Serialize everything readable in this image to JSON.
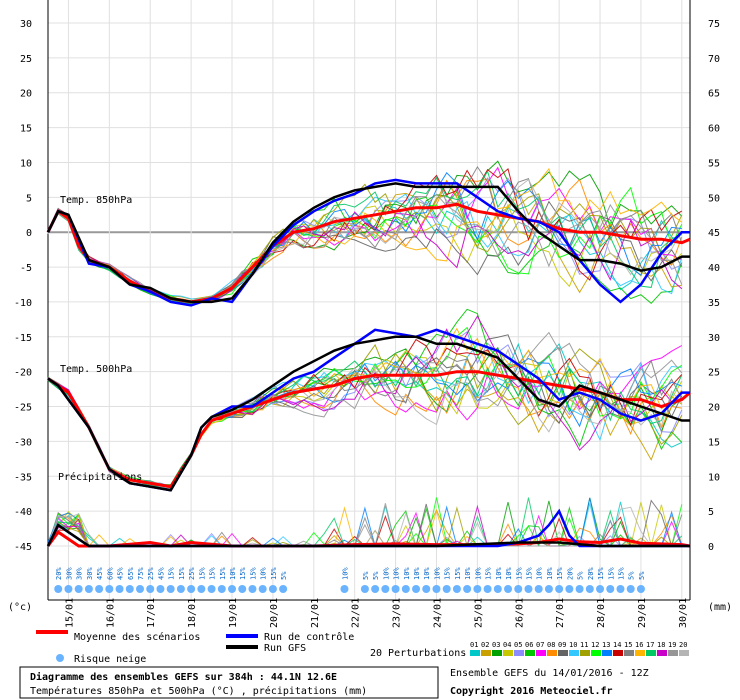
{
  "chart_data": {
    "type": "line",
    "title": "Diagramme des ensembles GEFS sur 384h : 44.1N 12.6E",
    "subtitle": "Températures 850hPa et 500hPa (°C) , précipitations (mm)",
    "left_axis": {
      "unit": "(°c)",
      "ylim": [
        -45,
        30
      ],
      "ticks": [
        30,
        25,
        20,
        15,
        10,
        5,
        0,
        -5,
        -10,
        -15,
        -20,
        -25,
        -30,
        -35,
        -40,
        -45
      ]
    },
    "right_axis": {
      "unit": "(mm)",
      "ylim": [
        0,
        75
      ],
      "ticks": [
        75,
        70,
        65,
        60,
        55,
        50,
        45,
        40,
        35,
        30,
        25,
        20,
        15,
        10,
        5,
        0
      ]
    },
    "x_ticks": [
      "15/01",
      "16/01",
      "17/01",
      "18/01",
      "19/01",
      "20/01",
      "21/01",
      "22/01",
      "23/01",
      "24/01",
      "25/01",
      "26/01",
      "27/01",
      "28/01",
      "29/01",
      "30/01"
    ],
    "x_range_days": [
      14.5,
      30.2
    ],
    "annotations": [
      "Temp. 850hPa",
      "Temp. 500hPa",
      "Précipitations"
    ],
    "series": [
      {
        "name": "Moyenne des scénarios",
        "color": "#ff0000",
        "group": "t850",
        "x": [
          14.5,
          14.75,
          15.0,
          15.25,
          15.5,
          16.0,
          16.5,
          17.0,
          17.5,
          18.0,
          18.5,
          19.0,
          19.5,
          20.0,
          20.5,
          21.0,
          21.5,
          22.0,
          22.5,
          23.0,
          23.5,
          24.0,
          24.5,
          25.0,
          25.5,
          26.0,
          26.5,
          27.0,
          27.5,
          28.0,
          28.5,
          29.0,
          29.5,
          30.0,
          30.2
        ],
        "values": [
          0,
          3,
          2,
          -2,
          -4,
          -5,
          -7,
          -8.5,
          -9.5,
          -10,
          -9.5,
          -8,
          -5,
          -2,
          0,
          0.5,
          1.5,
          2,
          2.5,
          3,
          3.5,
          3.5,
          4,
          3,
          2.5,
          2,
          1.5,
          0.5,
          0,
          0,
          -0.5,
          -1,
          -1,
          -1.5,
          -1
        ]
      },
      {
        "name": "Run de contrôle",
        "color": "#0000ff",
        "group": "t850",
        "x": [
          14.5,
          14.75,
          15.0,
          15.5,
          16.0,
          16.5,
          17.0,
          17.5,
          18.0,
          18.5,
          19.0,
          19.5,
          20.0,
          20.5,
          21.0,
          21.5,
          22.0,
          22.5,
          23.0,
          23.5,
          24.0,
          24.5,
          25.0,
          25.5,
          26.0,
          26.5,
          27.0,
          27.5,
          28.0,
          28.5,
          29.0,
          29.5,
          30.0,
          30.2
        ],
        "values": [
          0,
          3,
          2.5,
          -4.5,
          -5,
          -7.5,
          -8.5,
          -10,
          -10.5,
          -9.5,
          -10,
          -6,
          -2,
          1,
          3,
          4.5,
          5.5,
          7,
          7.5,
          7,
          7,
          7,
          5,
          3,
          2,
          1.5,
          0,
          -4,
          -7.5,
          -10,
          -7.5,
          -3,
          0,
          0
        ]
      },
      {
        "name": "Run GFS",
        "color": "#000000",
        "group": "t850",
        "x": [
          14.5,
          14.75,
          15.0,
          15.5,
          16.0,
          16.5,
          17.0,
          17.5,
          18.0,
          18.5,
          19.0,
          19.5,
          20.0,
          20.5,
          21.0,
          21.5,
          22.0,
          22.5,
          23.0,
          23.5,
          24.0,
          24.5,
          25.0,
          25.5,
          26.0,
          26.5,
          27.0,
          27.5,
          28.0,
          28.5,
          29.0,
          29.5,
          30.0,
          30.2
        ],
        "values": [
          0,
          3,
          2.5,
          -4,
          -5,
          -7.5,
          -8,
          -9.5,
          -10,
          -10,
          -9.5,
          -6,
          -1.5,
          1.5,
          3.5,
          5,
          6,
          6.5,
          7,
          6.5,
          6.5,
          6.5,
          6.5,
          6.5,
          3,
          0,
          -2,
          -4,
          -4,
          -4.5,
          -5.5,
          -5,
          -3.5,
          -3.5
        ]
      },
      {
        "name": "Moyenne des scénarios",
        "color": "#ff0000",
        "group": "t500",
        "x": [
          14.5,
          14.75,
          15.0,
          15.5,
          16.0,
          16.5,
          17.0,
          17.5,
          18.0,
          18.25,
          18.5,
          19.0,
          19.5,
          20.0,
          20.5,
          21.0,
          21.5,
          22.0,
          22.5,
          23.0,
          23.5,
          24.0,
          24.5,
          25.0,
          25.5,
          26.0,
          26.5,
          27.0,
          27.5,
          28.0,
          28.5,
          29.0,
          29.5,
          30.0,
          30.2
        ],
        "values": [
          -21,
          -22,
          -23,
          -28,
          -34,
          -35.5,
          -36,
          -36.5,
          -32,
          -29,
          -27,
          -26,
          -25,
          -24,
          -23,
          -22.5,
          -22,
          -21,
          -20.5,
          -20.5,
          -20.5,
          -20.5,
          -20,
          -20,
          -20.5,
          -21,
          -21.5,
          -22,
          -22.5,
          -23,
          -24,
          -24,
          -25,
          -24,
          -23
        ]
      },
      {
        "name": "Run de contrôle",
        "color": "#0000ff",
        "group": "t500",
        "x": [
          14.5,
          14.75,
          15.0,
          15.5,
          16.0,
          16.5,
          17.0,
          17.5,
          18.0,
          18.25,
          18.5,
          19.0,
          19.5,
          20.0,
          20.5,
          21.0,
          21.5,
          22.0,
          22.5,
          23.0,
          23.5,
          24.0,
          24.5,
          25.0,
          25.5,
          26.0,
          26.5,
          27.0,
          27.5,
          28.0,
          28.5,
          29.0,
          29.5,
          30.0,
          30.2
        ],
        "values": [
          -21,
          -22,
          -24,
          -28,
          -34,
          -36,
          -36.5,
          -37,
          -32,
          -28,
          -26.5,
          -25,
          -25,
          -23,
          -21,
          -20,
          -18,
          -16,
          -14,
          -14.5,
          -15,
          -14,
          -15,
          -16,
          -17,
          -19,
          -21,
          -24,
          -23,
          -24,
          -26,
          -27,
          -26,
          -23,
          -23
        ]
      },
      {
        "name": "Run GFS",
        "color": "#000000",
        "group": "t500",
        "x": [
          14.5,
          14.75,
          15.0,
          15.5,
          16.0,
          16.5,
          17.0,
          17.5,
          18.0,
          18.25,
          18.5,
          19.0,
          19.5,
          20.0,
          20.5,
          21.0,
          21.5,
          22.0,
          22.5,
          23.0,
          23.5,
          24.0,
          24.5,
          25.0,
          25.5,
          26.0,
          26.5,
          27.0,
          27.5,
          28.0,
          28.5,
          29.0,
          29.5,
          30.0,
          30.2
        ],
        "values": [
          -21,
          -22,
          -24,
          -28,
          -34,
          -36,
          -36.5,
          -37,
          -32,
          -28,
          -26.5,
          -25.5,
          -24,
          -22,
          -20,
          -18.5,
          -17,
          -16,
          -15.5,
          -15,
          -15,
          -16,
          -16,
          -17,
          -18,
          -21,
          -24,
          -25,
          -22,
          -23,
          -24,
          -25,
          -26,
          -27,
          -27
        ]
      },
      {
        "name": "Moyenne des scénarios",
        "color": "#ff0000",
        "group": "precip",
        "x": [
          14.5,
          14.75,
          15.0,
          15.25,
          15.5,
          16.0,
          17.0,
          17.5,
          18.0,
          19.0,
          20.0,
          21.0,
          22.0,
          23.0,
          24.0,
          25.0,
          26.0,
          26.5,
          27.0,
          27.5,
          28.0,
          28.5,
          29.0,
          29.5,
          30.0,
          30.2
        ],
        "values": [
          0,
          2,
          1,
          0,
          0,
          0,
          0.5,
          0,
          0.5,
          0,
          0,
          0,
          0.2,
          0.3,
          0.2,
          0.2,
          0.3,
          0.5,
          1.0,
          0.6,
          0.5,
          1.0,
          0.4,
          0.3,
          0.2,
          0
        ]
      },
      {
        "name": "Run de contrôle",
        "color": "#0000ff",
        "group": "precip",
        "x": [
          14.5,
          14.75,
          15.0,
          15.5,
          16.0,
          17.0,
          18.0,
          20.0,
          22.0,
          24.0,
          25.5,
          26.0,
          26.5,
          26.75,
          27.0,
          27.25,
          27.5,
          28.0,
          29.0,
          30.0,
          30.2
        ],
        "values": [
          0,
          3,
          2,
          0,
          0,
          0,
          0,
          0,
          0,
          0,
          0,
          0.5,
          1.5,
          3,
          5,
          1.5,
          0,
          0,
          0,
          0,
          0
        ]
      },
      {
        "name": "Run GFS",
        "color": "#000000",
        "group": "precip",
        "x": [
          14.5,
          14.75,
          15.0,
          15.5,
          16.0,
          17.0,
          18.0,
          20.0,
          22.0,
          24.0,
          26.0,
          27.0,
          28.0,
          29.0,
          30.0,
          30.2
        ],
        "values": [
          0,
          3,
          2,
          0,
          0,
          0,
          0,
          0,
          0,
          0,
          0.5,
          0.5,
          0,
          0,
          0,
          0
        ]
      }
    ],
    "snow_risk": {
      "groups": [
        {
          "start_day": 14.75,
          "labels": [
            "20%",
            "30%",
            "30%",
            "30%",
            "45%",
            "60%",
            "45%",
            "65%",
            "75%",
            "25%",
            "45%",
            "15%",
            "15%",
            "25%",
            "15%",
            "15%",
            "15%",
            "10%",
            "15%",
            "15%",
            "10%",
            "15%",
            "5%"
          ]
        },
        {
          "start_day": 21.75,
          "labels": [
            "10%"
          ]
        },
        {
          "start_day": 22.25,
          "labels": [
            "5%",
            "5%",
            "10%",
            "10%",
            "10%",
            "10%",
            "10%",
            "10%",
            "15%",
            "15%",
            "10%",
            "10%",
            "15%",
            "10%",
            "10%",
            "15%",
            "15%",
            "10%",
            "10%",
            "15%",
            "20%",
            "5%",
            "20%",
            "15%",
            "15%",
            "15%",
            "5%",
            "5%"
          ]
        }
      ]
    }
  },
  "legend": {
    "mean": "Moyenne des scénarios",
    "control": "Run de contrôle",
    "gfs": "Run GFS",
    "perturbations": "20 Perturbations",
    "pert_numbers": [
      "01",
      "02",
      "03",
      "04",
      "05",
      "06",
      "07",
      "08",
      "09",
      "10",
      "11",
      "12",
      "13",
      "14",
      "15",
      "16",
      "17",
      "18",
      "19",
      "20"
    ],
    "pert_colors": [
      "#00c8c8",
      "#c8a000",
      "#00a000",
      "#c8c800",
      "#8c8cff",
      "#00c800",
      "#ff00ff",
      "#ff8c00",
      "#646464",
      "#32c8ff",
      "#a0a000",
      "#00ff00",
      "#0080ff",
      "#c80000",
      "#808080",
      "#ffb400",
      "#00c864",
      "#c800c8",
      "#969696",
      "#b4b4b4"
    ],
    "snow_risk": "Risque neige"
  },
  "footer": {
    "title": "Diagramme des ensembles GEFS sur 384h : 44.1N 12.6E",
    "subtitle": "Températures 850hPa et 500hPa (°C) , précipitations (mm)",
    "run": "Ensemble GEFS du 14/01/2016 - 12Z",
    "copyright": "Copyright 2016 Meteociel.fr"
  }
}
